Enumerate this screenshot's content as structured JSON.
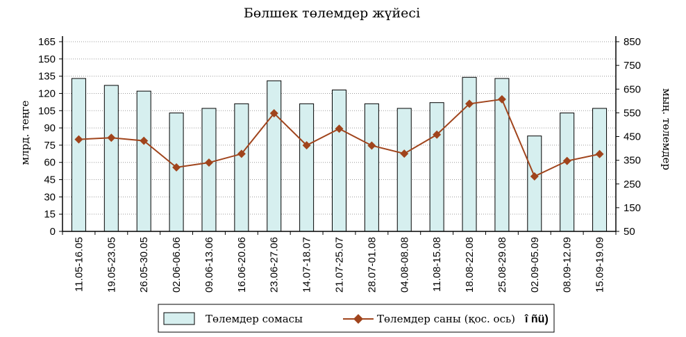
{
  "chart_data": {
    "type": "bar",
    "title": "Бөлшек  төлемдер жүйесі",
    "ylabel": "млрд. теңге",
    "y2label": "мың. төлемдер",
    "ylim": [
      0,
      165
    ],
    "yticks": [
      0,
      15,
      30,
      45,
      60,
      75,
      90,
      105,
      120,
      135,
      150,
      165
    ],
    "y2lim": [
      50,
      850
    ],
    "y2ticks": [
      50,
      150,
      250,
      350,
      450,
      550,
      650,
      750,
      850
    ],
    "grid": true,
    "legend_position": "bottom",
    "categories": [
      "11.05-16.05",
      "19.05-23.05",
      "26.05-30.05",
      "02.06-06.06",
      "09.06-13.06",
      "16.06-20.06",
      "23.06-27.06",
      "14.07-18.07",
      "21.07-25.07",
      "28.07-01.08",
      "04.08-08.08",
      "11.08-15.08",
      "18.08-22.08",
      "25.08-29.08",
      "02.09-05.09",
      "08.09-12.09",
      "15.09-19.09"
    ],
    "series": [
      {
        "name": "Төлемдер сомасы",
        "type": "bar",
        "axis": "left",
        "color": "#d6efef",
        "values": [
          133,
          127,
          122,
          103,
          107,
          111,
          131,
          111,
          123,
          111,
          107,
          112,
          134,
          133,
          83,
          103,
          107
        ]
      },
      {
        "name": "Төлемдер саны (қос. ось)",
        "type": "line",
        "axis": "right",
        "color": "#a0441c",
        "values": [
          438,
          445,
          432,
          320,
          340,
          377,
          548,
          413,
          483,
          412,
          378,
          458,
          588,
          607,
          282,
          347,
          376
        ]
      }
    ],
    "legend_extra": "î ñü)"
  }
}
